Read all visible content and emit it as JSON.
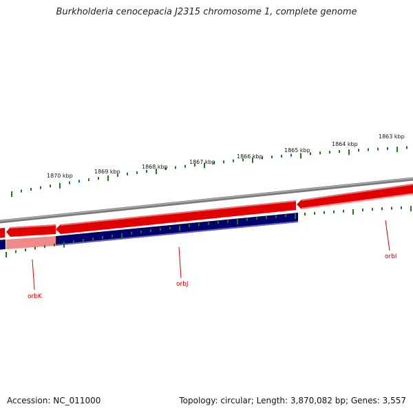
{
  "title": "Burkholderia cenocepacia J2315 chromosome 1, complete genome",
  "accession_text": "Accession: NC_011000",
  "summary_text": "Topology: circular; Length: 3,870,082 bp; Genes: 3,557",
  "colors": {
    "forward_gene": "#e00000",
    "forward_gene_light": "#ff7a7a",
    "reverse_gene": "#00006e",
    "reverse_gene_light": "#f08a8a",
    "backbone": "#7a7a7a",
    "ticks": "#1a7a1a",
    "label": "#cc0000"
  },
  "scale_ticks": [
    {
      "label": "1870 kbp"
    },
    {
      "label": "1869 kbp"
    },
    {
      "label": "1868 kbp"
    },
    {
      "label": "1867 kbp"
    },
    {
      "label": "1866 kbp"
    },
    {
      "label": "1865 kbp"
    },
    {
      "label": "1864 kbp"
    },
    {
      "label": "1863 kbp"
    }
  ],
  "genes": [
    {
      "name": "orbK",
      "strand": "reverse"
    },
    {
      "name": "orbJ",
      "strand": "reverse"
    },
    {
      "name": "orbI",
      "strand": "reverse"
    }
  ]
}
